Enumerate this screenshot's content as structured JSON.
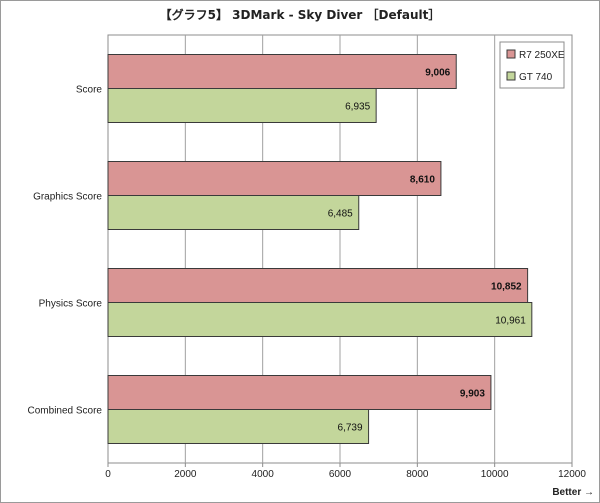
{
  "chart_data": {
    "type": "bar",
    "orientation": "horizontal",
    "title": "【グラフ5】 3DMark - Sky Diver ［Default］",
    "categories": [
      "Score",
      "Graphics Score",
      "Physics Score",
      "Combined Score"
    ],
    "series": [
      {
        "name": "R7 250XE",
        "color": "#d99594",
        "values": [
          9006,
          8610,
          10852,
          9903
        ],
        "labels": [
          "9,006",
          "8,610",
          "10,852",
          "9,903"
        ],
        "label_bold": true
      },
      {
        "name": "GT 740",
        "color": "#c3d69b",
        "values": [
          6935,
          6485,
          10961,
          6739
        ],
        "labels": [
          "6,935",
          "6,485",
          "10,961",
          "6,739"
        ],
        "label_bold": false
      }
    ],
    "xlim": [
      0,
      12000
    ],
    "xticks": [
      "0",
      "2000",
      "4000",
      "6000",
      "8000",
      "10000",
      "12000"
    ],
    "xtick_values": [
      0,
      2000,
      4000,
      6000,
      8000,
      10000,
      12000
    ],
    "footnote": "Better →",
    "grid": true,
    "legend_position": "top-right"
  }
}
